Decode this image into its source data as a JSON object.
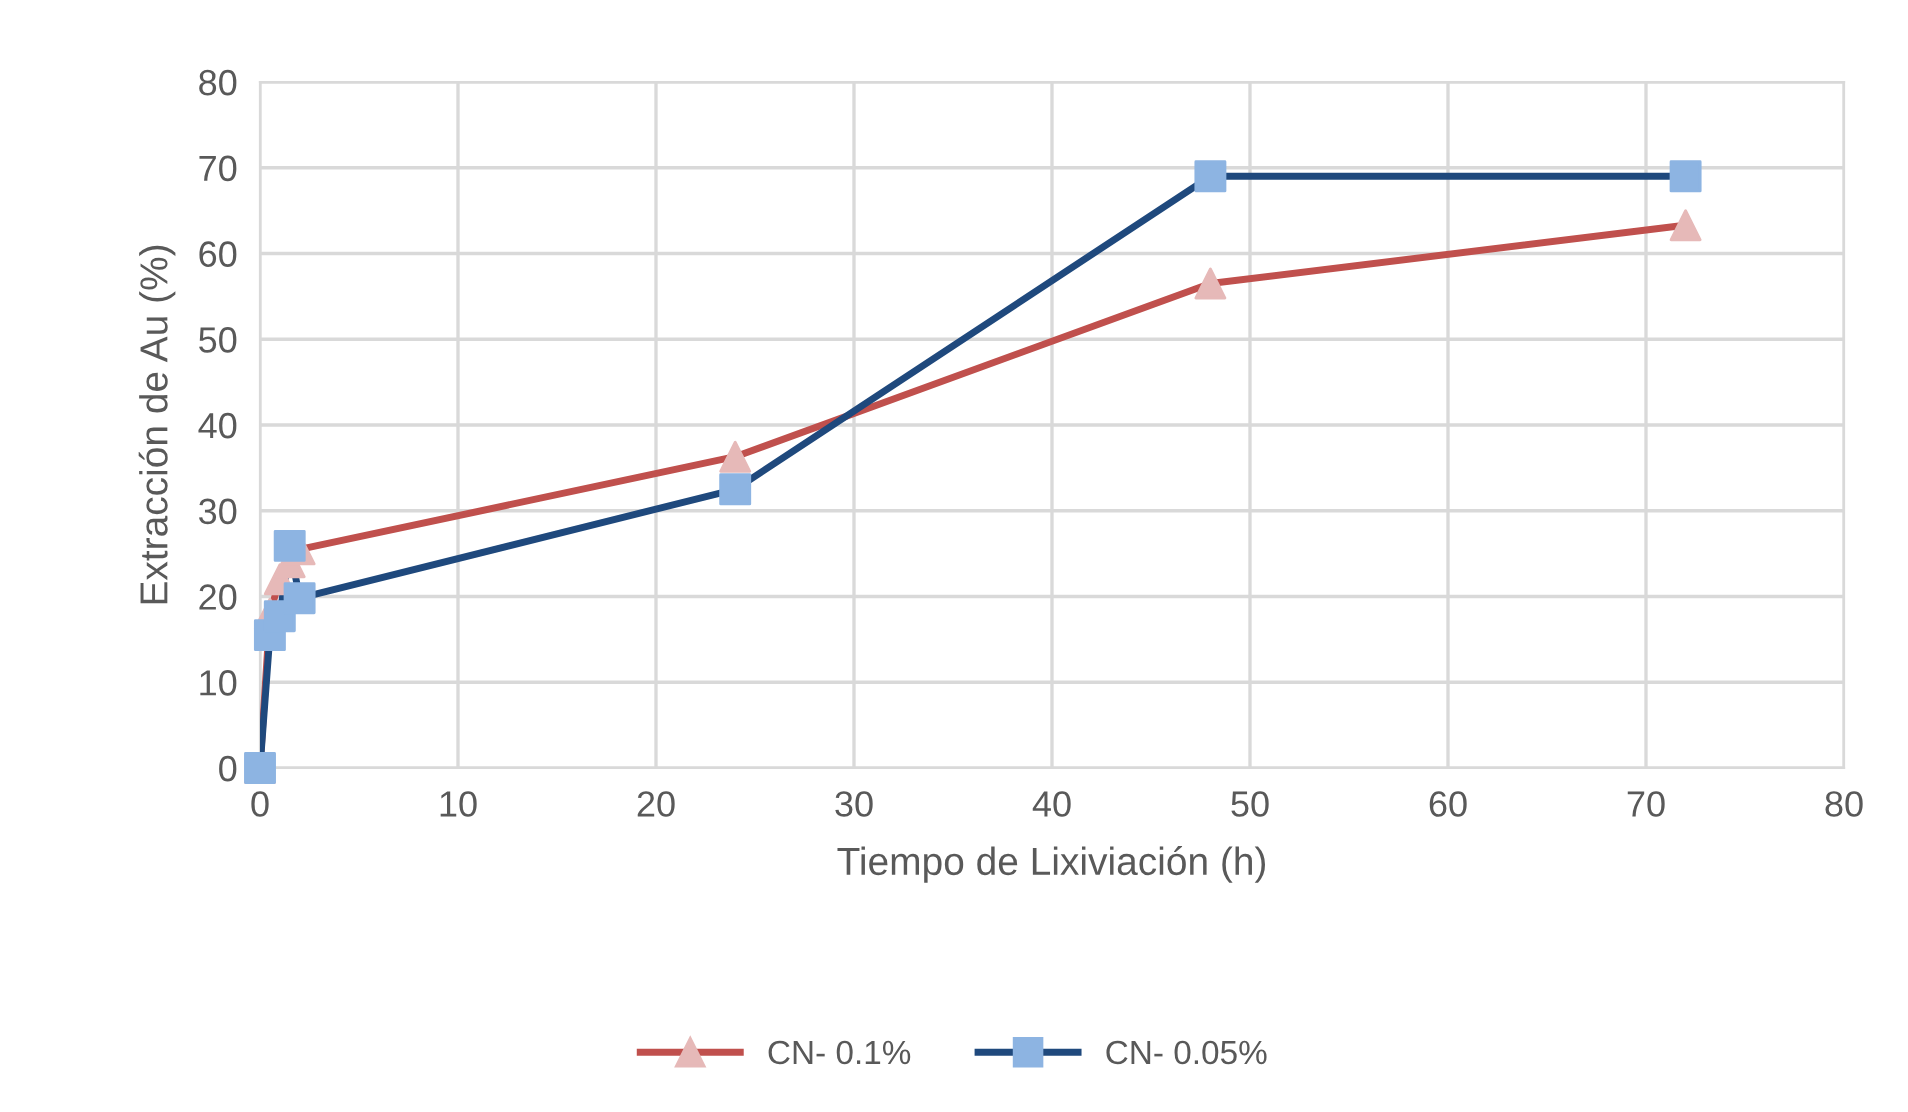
{
  "chart_data": {
    "type": "line",
    "xlabel": "Tiempo de Lixiviación (h)",
    "ylabel": "Extracción de Au (%)",
    "xlim": [
      0,
      80
    ],
    "xticks": [
      0,
      10,
      20,
      30,
      40,
      50,
      60,
      70,
      80
    ],
    "ylim": [
      0,
      80
    ],
    "yticks": [
      0,
      10,
      20,
      30,
      40,
      50,
      60,
      70,
      80
    ],
    "grid": true,
    "legend": "bottom",
    "line_style": "solid",
    "series": [
      {
        "name": "CN- 0.1%",
        "color": "#c0504d",
        "colors": [
          "#e6b9b8",
          "#e6b9b8",
          "#e6b9b8",
          "#e6b9b8",
          "#e6b9b8",
          "#e6b9b8",
          "#e6b9b8",
          "#e6b9b8"
        ],
        "marker": "triangle",
        "x": [
          0,
          0.5,
          1,
          1.5,
          2,
          24,
          48,
          72
        ],
        "values": [
          0,
          18,
          22,
          24,
          25.5,
          36.3,
          56.5,
          63.3
        ]
      },
      {
        "name": "CN- 0.05%",
        "color": "#1f497d",
        "colors": [
          "#8db4e2",
          "#8db4e2",
          "#8db4e2",
          "#8db4e2",
          "#8db4e2",
          "#8db4e2",
          "#8db4e2",
          "#8db4e2"
        ],
        "marker": "square",
        "x": [
          0,
          0.5,
          1,
          1.5,
          2,
          24,
          48,
          72
        ],
        "values": [
          0,
          15.5,
          17.7,
          25.9,
          19.8,
          32.5,
          69,
          69
        ]
      }
    ]
  }
}
